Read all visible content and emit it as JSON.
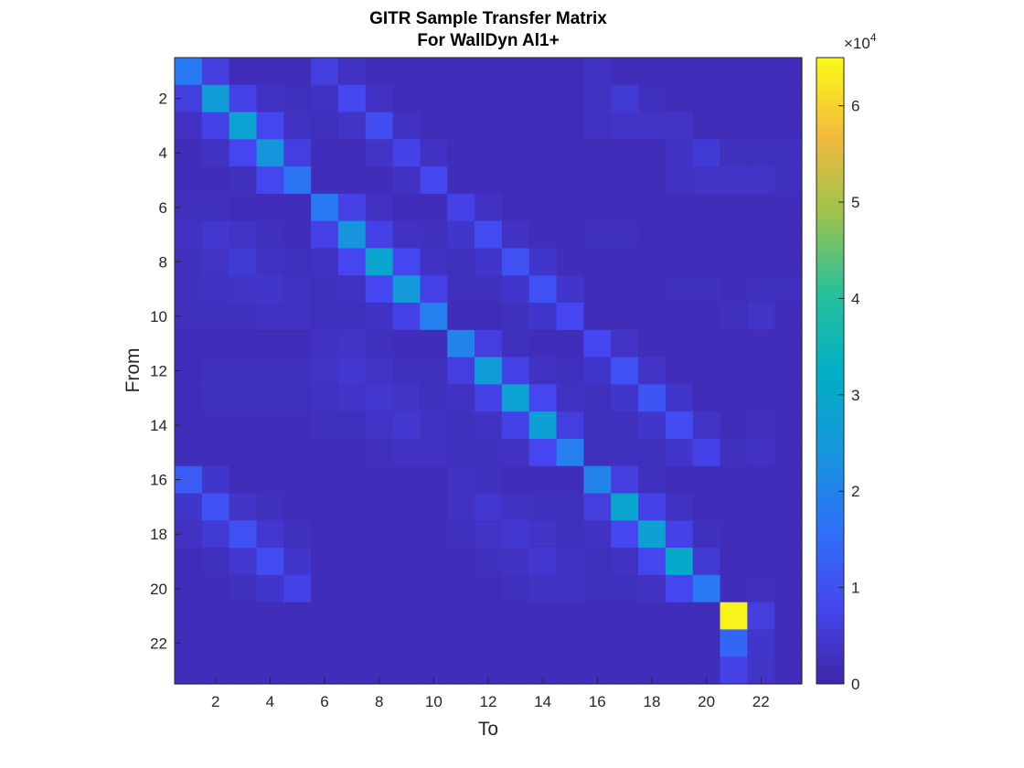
{
  "chart_data": {
    "type": "heatmap",
    "title": [
      "GITR Sample Transfer Matrix",
      "For WallDyn Al1+"
    ],
    "xlabel": "To",
    "ylabel": "From",
    "x_ticks": [
      "2",
      "4",
      "6",
      "8",
      "10",
      "12",
      "14",
      "16",
      "18",
      "20",
      "22"
    ],
    "y_ticks": [
      "2",
      "4",
      "6",
      "8",
      "10",
      "12",
      "14",
      "16",
      "18",
      "20",
      "22"
    ],
    "n_rows": 23,
    "n_cols": 23,
    "colormap": "parula",
    "colorbar": {
      "range": [
        0,
        65000
      ],
      "ticks": [
        "0",
        "1",
        "2",
        "3",
        "4",
        "5",
        "6"
      ],
      "exponent_base": "×10",
      "exponent_power": "4"
    },
    "matrix": [
      [
        18000,
        6000,
        2000,
        2000,
        2000,
        6000,
        3000,
        2000,
        2000,
        2000,
        2000,
        2000,
        2000,
        2000,
        2000,
        3000,
        2000,
        2000,
        2000,
        2000,
        2000,
        2000,
        2000
      ],
      [
        6000,
        26000,
        7000,
        3000,
        2500,
        3000,
        8000,
        3000,
        2000,
        2000,
        2000,
        2000,
        2000,
        2000,
        2000,
        3000,
        5000,
        2500,
        2000,
        2000,
        2000,
        2000,
        2000
      ],
      [
        3000,
        7000,
        28000,
        8000,
        3000,
        2500,
        3500,
        9000,
        3000,
        2000,
        2000,
        2000,
        2000,
        2000,
        2000,
        3000,
        3500,
        3500,
        3500,
        2000,
        2000,
        2000,
        2000
      ],
      [
        2000,
        3000,
        8000,
        24000,
        6000,
        2000,
        2000,
        3500,
        7000,
        3000,
        2000,
        2000,
        2000,
        2000,
        2000,
        2000,
        2000,
        2000,
        3000,
        5000,
        2500,
        2500,
        2500
      ],
      [
        2000,
        2000,
        2500,
        8000,
        17000,
        2000,
        2000,
        2000,
        3000,
        8000,
        2000,
        2000,
        2000,
        2000,
        2000,
        2000,
        2000,
        2000,
        3000,
        3500,
        3500,
        3500,
        2500
      ],
      [
        2500,
        2500,
        2000,
        2000,
        2000,
        18000,
        7000,
        3000,
        2000,
        2000,
        7000,
        3000,
        2000,
        2000,
        2000,
        2000,
        2000,
        2000,
        2000,
        2000,
        2000,
        2000,
        2000
      ],
      [
        3000,
        4500,
        3500,
        2500,
        2000,
        7000,
        24000,
        7000,
        3000,
        2500,
        4000,
        9000,
        3000,
        2000,
        2000,
        2500,
        2500,
        2000,
        2000,
        2000,
        2000,
        2000,
        2000
      ],
      [
        2500,
        3500,
        5000,
        3000,
        2500,
        3000,
        8000,
        29000,
        8000,
        3000,
        2500,
        4000,
        10000,
        4000,
        2000,
        2000,
        2000,
        2000,
        2000,
        2000,
        2000,
        2000,
        2000
      ],
      [
        2500,
        3000,
        3500,
        4000,
        3000,
        2500,
        3000,
        8000,
        25000,
        7000,
        2500,
        2500,
        4000,
        10000,
        4000,
        2000,
        2000,
        2000,
        2500,
        2500,
        2000,
        2500,
        2500
      ],
      [
        2500,
        2500,
        2500,
        3000,
        3000,
        2500,
        2500,
        3000,
        7000,
        19000,
        2000,
        2000,
        2500,
        4000,
        8000,
        2000,
        2000,
        2000,
        2000,
        2000,
        2500,
        3500,
        2000
      ],
      [
        2000,
        2000,
        2000,
        2000,
        2000,
        3000,
        3500,
        2500,
        2000,
        2000,
        20000,
        6000,
        2500,
        2000,
        2000,
        8000,
        3500,
        2000,
        2000,
        2000,
        2000,
        2000,
        2000
      ],
      [
        2000,
        2500,
        2500,
        2500,
        2500,
        3500,
        4500,
        3500,
        2500,
        2500,
        6000,
        26000,
        7000,
        3000,
        2500,
        4000,
        10000,
        3500,
        2000,
        2000,
        2000,
        2000,
        2000
      ],
      [
        2000,
        2500,
        2500,
        2500,
        2500,
        3000,
        3500,
        4500,
        3500,
        2500,
        3000,
        7000,
        28000,
        8000,
        3000,
        2500,
        4000,
        11000,
        4000,
        2000,
        2000,
        2000,
        2000
      ],
      [
        2000,
        2000,
        2000,
        2000,
        2000,
        2500,
        2500,
        3500,
        4500,
        3000,
        2500,
        3000,
        7000,
        27000,
        6000,
        2500,
        2500,
        4000,
        9000,
        3500,
        2000,
        2500,
        2000
      ],
      [
        2000,
        2000,
        2000,
        2000,
        2000,
        2000,
        2000,
        2500,
        3000,
        3000,
        2500,
        2500,
        3000,
        8000,
        19000,
        2500,
        2500,
        2500,
        4000,
        7000,
        2500,
        3000,
        2000
      ],
      [
        12000,
        4000,
        2000,
        2000,
        2000,
        2000,
        2000,
        2000,
        2000,
        2000,
        3000,
        2500,
        2000,
        2000,
        2000,
        20000,
        6000,
        2500,
        2000,
        2000,
        2000,
        2000,
        2000
      ],
      [
        4000,
        10000,
        3500,
        2500,
        2000,
        2000,
        2000,
        2000,
        2000,
        2000,
        3000,
        4500,
        3000,
        2500,
        2500,
        6000,
        29000,
        7000,
        3000,
        2000,
        2000,
        2000,
        2000
      ],
      [
        3000,
        5000,
        10000,
        4500,
        2500,
        2000,
        2000,
        2000,
        2000,
        2000,
        2500,
        3500,
        4500,
        3500,
        2500,
        3000,
        8000,
        27000,
        7000,
        2500,
        2000,
        2000,
        2000
      ],
      [
        2000,
        2500,
        4500,
        9000,
        4000,
        2000,
        2000,
        2000,
        2000,
        2000,
        2000,
        2500,
        3000,
        4500,
        3000,
        2500,
        3000,
        8000,
        30000,
        5000,
        2000,
        2000,
        2000
      ],
      [
        2000,
        2000,
        2500,
        4000,
        7000,
        2000,
        2000,
        2000,
        2000,
        2000,
        2000,
        2000,
        2500,
        3000,
        3000,
        2500,
        2500,
        3000,
        8000,
        18000,
        2000,
        2500,
        2000
      ],
      [
        2000,
        2000,
        2000,
        2000,
        2000,
        2000,
        2000,
        2000,
        2000,
        2000,
        2000,
        2000,
        2000,
        2000,
        2000,
        2000,
        2000,
        2000,
        2000,
        2000,
        64000,
        6000,
        2000
      ],
      [
        2000,
        2000,
        2000,
        2000,
        2000,
        2000,
        2000,
        2000,
        2000,
        2000,
        2000,
        2000,
        2000,
        2000,
        2000,
        2000,
        2000,
        2000,
        2000,
        2000,
        14000,
        4000,
        2000
      ],
      [
        2000,
        2000,
        2000,
        2000,
        2000,
        2000,
        2000,
        2000,
        2000,
        2000,
        2000,
        2000,
        2000,
        2000,
        2000,
        2000,
        2000,
        2000,
        2000,
        2000,
        7000,
        3500,
        2000
      ]
    ]
  }
}
